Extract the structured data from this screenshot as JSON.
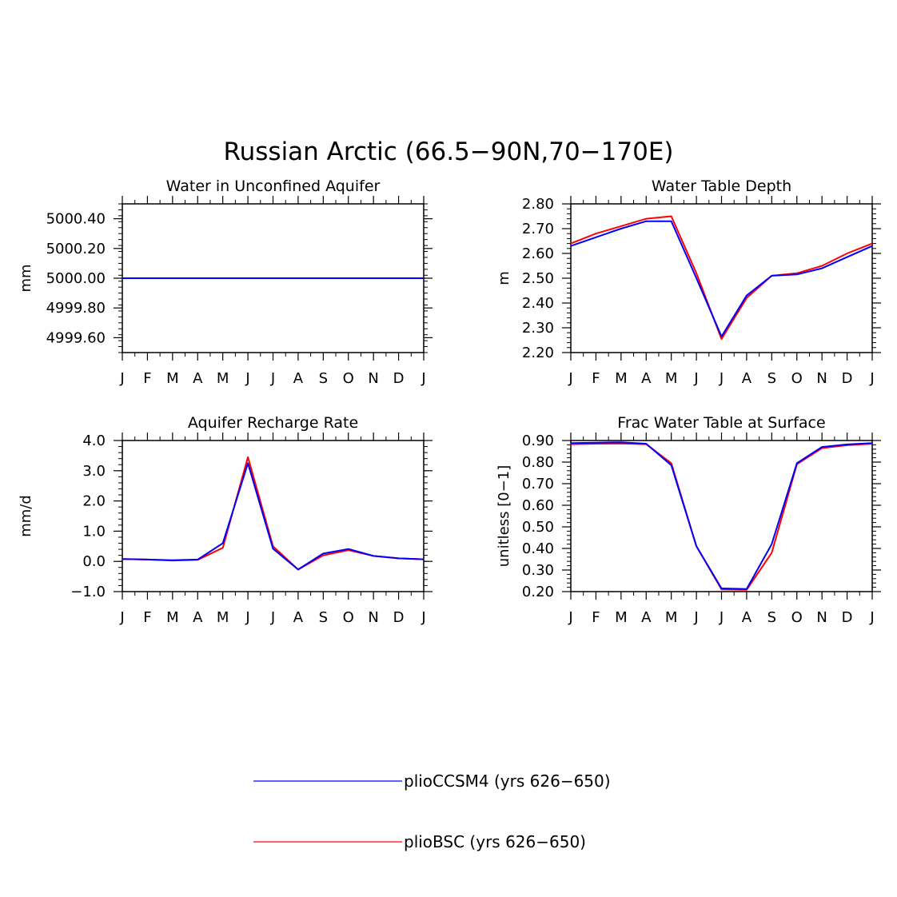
{
  "figure": {
    "title": "Russian Arctic (66.5−90N,70−170E)"
  },
  "legend": {
    "items": [
      {
        "label": "plioCCSM4 (yrs 626−650)",
        "color": "#0000ff"
      },
      {
        "label": "plioBSC (yrs 626−650)",
        "color": "#ff0000"
      }
    ]
  },
  "chart_data": [
    {
      "type": "line",
      "title": "Water in Unconfined Aquifer",
      "ylabel": "mm",
      "categories": [
        "J",
        "F",
        "M",
        "A",
        "M",
        "J",
        "J",
        "A",
        "S",
        "O",
        "N",
        "D",
        "J"
      ],
      "ylim": [
        4999.5,
        5000.5
      ],
      "yticks": [
        4999.6,
        4999.8,
        5000.0,
        5000.2,
        5000.4
      ],
      "ytick_labels": [
        "4999.60",
        "4999.80",
        "5000.00",
        "5000.20",
        "5000.40"
      ],
      "series": [
        {
          "name": "plioBSC (yrs 626−650)",
          "color": "#ff0000",
          "values": [
            5000,
            5000,
            5000,
            5000,
            5000,
            5000,
            5000,
            5000,
            5000,
            5000,
            5000,
            5000,
            5000
          ]
        },
        {
          "name": "plioCCSM4 (yrs 626−650)",
          "color": "#0000ff",
          "values": [
            5000,
            5000,
            5000,
            5000,
            5000,
            5000,
            5000,
            5000,
            5000,
            5000,
            5000,
            5000,
            5000
          ]
        }
      ]
    },
    {
      "type": "line",
      "title": "Water Table Depth",
      "ylabel": "m",
      "categories": [
        "J",
        "F",
        "M",
        "A",
        "M",
        "J",
        "J",
        "A",
        "S",
        "O",
        "N",
        "D",
        "J"
      ],
      "ylim": [
        2.2,
        2.8
      ],
      "yticks": [
        2.2,
        2.3,
        2.4,
        2.5,
        2.6,
        2.7,
        2.8
      ],
      "ytick_labels": [
        "2.20",
        "2.30",
        "2.40",
        "2.50",
        "2.60",
        "2.70",
        "2.80"
      ],
      "series": [
        {
          "name": "plioBSC (yrs 626−650)",
          "color": "#ff0000",
          "values": [
            2.64,
            2.68,
            2.71,
            2.74,
            2.75,
            2.52,
            2.255,
            2.42,
            2.51,
            2.52,
            2.55,
            2.6,
            2.64
          ]
        },
        {
          "name": "plioCCSM4 (yrs 626−650)",
          "color": "#0000ff",
          "values": [
            2.63,
            2.665,
            2.7,
            2.73,
            2.73,
            2.5,
            2.265,
            2.43,
            2.51,
            2.515,
            2.54,
            2.585,
            2.63
          ]
        }
      ]
    },
    {
      "type": "line",
      "title": "Aquifer Recharge Rate",
      "ylabel": "mm/d",
      "categories": [
        "J",
        "F",
        "M",
        "A",
        "M",
        "J",
        "J",
        "A",
        "S",
        "O",
        "N",
        "D",
        "J"
      ],
      "ylim": [
        -1.0,
        4.0
      ],
      "yticks": [
        -1.0,
        0.0,
        1.0,
        2.0,
        3.0,
        4.0
      ],
      "ytick_labels": [
        "−1.0",
        "0.0",
        "1.0",
        "2.0",
        "3.0",
        "4.0"
      ],
      "series": [
        {
          "name": "plioBSC (yrs 626−650)",
          "color": "#ff0000",
          "values": [
            0.08,
            0.06,
            0.03,
            0.05,
            0.45,
            3.45,
            0.5,
            -0.27,
            0.2,
            0.37,
            0.18,
            0.1,
            0.07
          ]
        },
        {
          "name": "plioCCSM4 (yrs 626−650)",
          "color": "#0000ff",
          "values": [
            0.08,
            0.06,
            0.04,
            0.06,
            0.6,
            3.25,
            0.42,
            -0.27,
            0.26,
            0.41,
            0.18,
            0.1,
            0.07
          ]
        }
      ]
    },
    {
      "type": "line",
      "title": "Frac Water Table at Surface",
      "ylabel": "unitless [0−1]",
      "categories": [
        "J",
        "F",
        "M",
        "A",
        "M",
        "J",
        "J",
        "A",
        "S",
        "O",
        "N",
        "D",
        "J"
      ],
      "ylim": [
        0.2,
        0.9
      ],
      "yticks": [
        0.2,
        0.3,
        0.4,
        0.5,
        0.6,
        0.7,
        0.8,
        0.9
      ],
      "ytick_labels": [
        "0.20",
        "0.30",
        "0.40",
        "0.50",
        "0.60",
        "0.70",
        "0.80",
        "0.90"
      ],
      "series": [
        {
          "name": "plioBSC (yrs 626−650)",
          "color": "#ff0000",
          "values": [
            0.883,
            0.885,
            0.886,
            0.883,
            0.795,
            0.41,
            0.21,
            0.208,
            0.38,
            0.79,
            0.865,
            0.878,
            0.885
          ]
        },
        {
          "name": "plioCCSM4 (yrs 626−650)",
          "color": "#0000ff",
          "values": [
            0.888,
            0.89,
            0.892,
            0.885,
            0.785,
            0.41,
            0.215,
            0.212,
            0.42,
            0.795,
            0.87,
            0.882,
            0.888
          ]
        }
      ]
    }
  ]
}
